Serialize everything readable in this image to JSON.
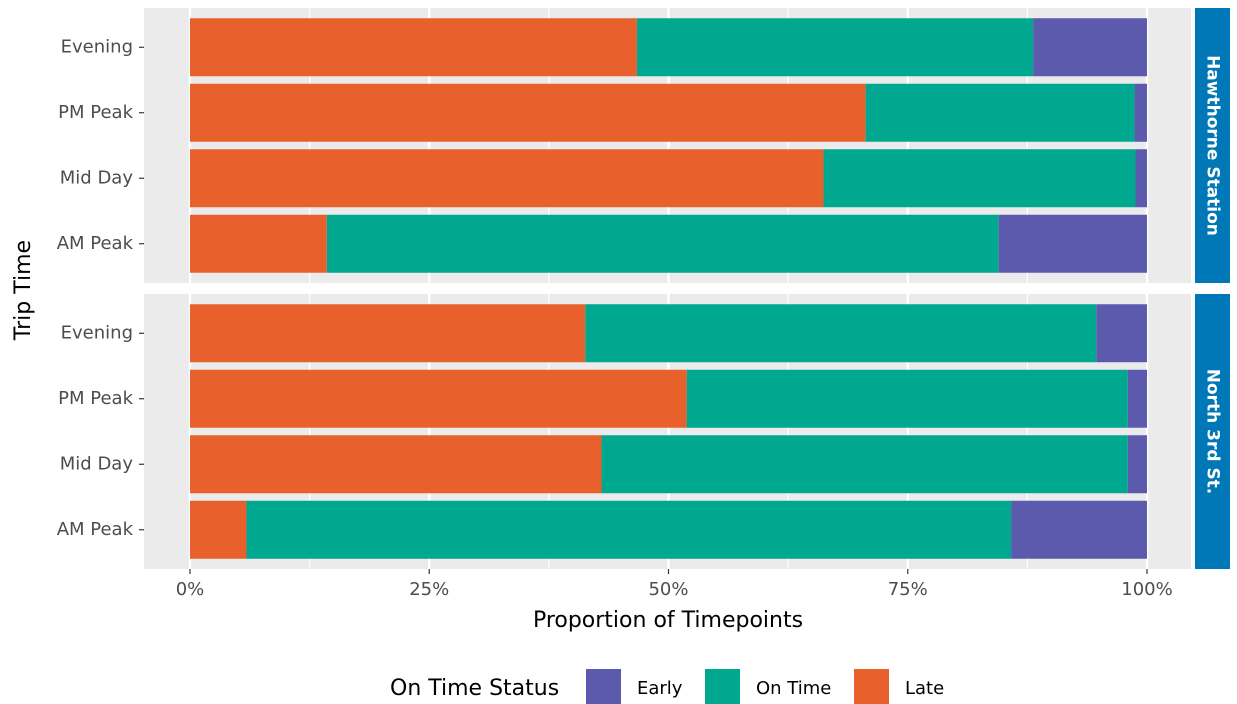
{
  "colors": {
    "panel_background": "#ebebeb",
    "gridline": "#ffffff",
    "strip_background": "#0077b6",
    "strip_text": "#ffffff",
    "Early": "#5b5aad",
    "On Time": "#00a88f",
    "Late": "#e8612c"
  },
  "chart_data": {
    "type": "bar",
    "orientation": "horizontal",
    "stacked": true,
    "position": "fill",
    "xlabel": "Proportion of Timepoints",
    "ylabel": "Trip Time",
    "xlim": [
      0,
      1
    ],
    "x_ticks": [
      "0%",
      "25%",
      "50%",
      "75%",
      "100%"
    ],
    "x_tick_values": [
      0,
      0.25,
      0.5,
      0.75,
      1.0
    ],
    "categories": [
      "Evening",
      "PM Peak",
      "Mid Day",
      "AM Peak"
    ],
    "stack_order": [
      "Late",
      "On Time",
      "Early"
    ],
    "legend": {
      "title": "On Time Status",
      "placement": "bottom",
      "items": [
        "Early",
        "On Time",
        "Late"
      ]
    },
    "facets": [
      {
        "label": "Hawthorne Station",
        "series": [
          {
            "name": "Late",
            "values": [
              0.467,
              0.706,
              0.662,
              0.143
            ]
          },
          {
            "name": "On Time",
            "values": [
              0.414,
              0.281,
              0.326,
              0.702
            ]
          },
          {
            "name": "Early",
            "values": [
              0.119,
              0.013,
              0.012,
              0.155
            ]
          }
        ]
      },
      {
        "label": "North 3rd St.",
        "series": [
          {
            "name": "Late",
            "values": [
              0.413,
              0.519,
              0.43,
              0.059
            ]
          },
          {
            "name": "On Time",
            "values": [
              0.534,
              0.461,
              0.55,
              0.799
            ]
          },
          {
            "name": "Early",
            "values": [
              0.053,
              0.02,
              0.02,
              0.142
            ]
          }
        ]
      }
    ]
  }
}
